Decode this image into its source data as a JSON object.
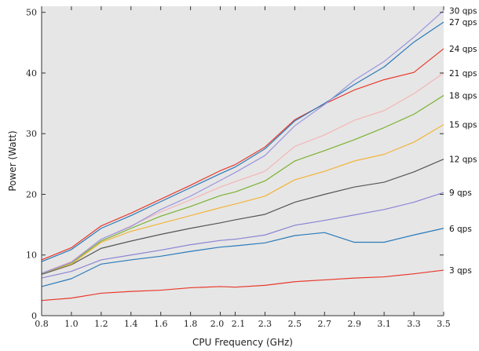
{
  "chart_data": {
    "type": "line",
    "title": "",
    "xlabel": "CPU Frequency (GHz)",
    "ylabel": "Power (Watt)",
    "xlim": [
      0.8,
      3.5
    ],
    "ylim": [
      0,
      51
    ],
    "grid": false,
    "background": "#e6e6e6",
    "x": [
      0.8,
      1.0,
      1.2,
      1.4,
      1.6,
      1.8,
      2.0,
      2.1,
      2.3,
      2.5,
      2.7,
      2.9,
      3.1,
      3.3,
      3.5
    ],
    "x_ticks": [
      "0.8",
      "1.0",
      "1.2",
      "1.4",
      "1.6",
      "1.8",
      "2.0",
      "2.1",
      "2.3",
      "2.5",
      "2.7",
      "2.9",
      "3.1",
      "3.3",
      "3.5"
    ],
    "y_ticks": [
      "0",
      "10",
      "20",
      "30",
      "40",
      "50"
    ],
    "y_tick_values": [
      0,
      10,
      20,
      30,
      40,
      50
    ],
    "series": [
      {
        "name": "3 qps",
        "color": "#e8392b",
        "values": [
          2.5,
          2.9,
          3.7,
          4.0,
          4.2,
          4.6,
          4.8,
          4.7,
          5.0,
          5.6,
          5.9,
          6.2,
          6.4,
          6.9,
          7.5
        ]
      },
      {
        "name": "6 qps",
        "color": "#2a7ab9",
        "values": [
          4.8,
          6.1,
          8.5,
          9.2,
          9.8,
          10.6,
          11.3,
          11.5,
          12.0,
          13.2,
          13.7,
          12.1,
          12.1,
          13.3,
          14.4
        ]
      },
      {
        "name": "9 qps",
        "color": "#8b85d4",
        "values": [
          6.2,
          7.3,
          9.2,
          10.0,
          10.8,
          11.7,
          12.4,
          12.6,
          13.3,
          14.9,
          15.7,
          16.6,
          17.5,
          18.7,
          20.3
        ]
      },
      {
        "name": "12 qps",
        "color": "#555555",
        "values": [
          6.8,
          8.4,
          11.1,
          12.3,
          13.4,
          14.4,
          15.3,
          15.8,
          16.7,
          18.7,
          20.0,
          21.2,
          22.0,
          23.7,
          25.8
        ]
      },
      {
        "name": "15 qps",
        "color": "#f2b53c",
        "values": [
          7.0,
          8.5,
          12.1,
          13.9,
          15.2,
          16.5,
          17.8,
          18.4,
          19.7,
          22.4,
          23.8,
          25.5,
          26.6,
          28.6,
          31.5
        ]
      },
      {
        "name": "18 qps",
        "color": "#7ab22e",
        "values": [
          7.0,
          8.7,
          12.3,
          14.4,
          16.4,
          18.0,
          19.8,
          20.4,
          22.2,
          25.5,
          27.2,
          29.0,
          31.0,
          33.2,
          36.3
        ]
      },
      {
        "name": "21 qps",
        "color": "#f4b6b6",
        "values": [
          7.0,
          8.9,
          12.6,
          14.8,
          17.1,
          19.1,
          21.2,
          22.1,
          23.8,
          27.9,
          29.8,
          32.2,
          33.8,
          36.6,
          40.0
        ]
      },
      {
        "name": "24 qps",
        "color": "#e8392b",
        "values": [
          9.2,
          11.2,
          14.8,
          16.9,
          19.2,
          21.5,
          23.9,
          24.9,
          27.8,
          32.3,
          34.9,
          37.2,
          38.9,
          40.1,
          44.0
        ]
      },
      {
        "name": "27 qps",
        "color": "#2a7ab9",
        "values": [
          8.9,
          10.9,
          14.4,
          16.5,
          18.8,
          21.1,
          23.4,
          24.5,
          27.5,
          32.1,
          35.0,
          38.1,
          41.0,
          45.1,
          48.4
        ]
      },
      {
        "name": "30 qps",
        "color": "#9b95e0",
        "values": [
          7.0,
          8.8,
          12.6,
          14.7,
          17.5,
          19.7,
          22.3,
          23.6,
          26.4,
          31.3,
          34.8,
          38.8,
          41.9,
          45.9,
          50.3
        ]
      }
    ]
  }
}
